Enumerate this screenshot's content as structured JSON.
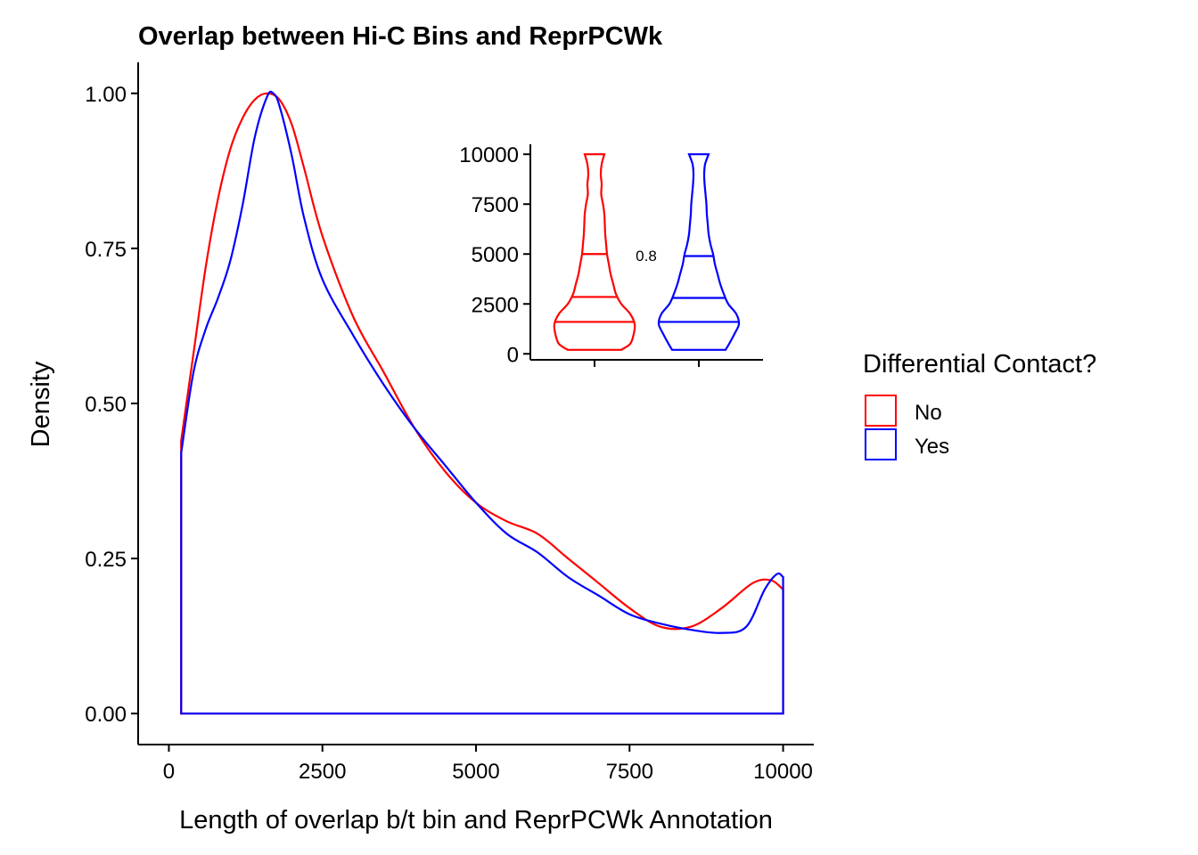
{
  "chart_data": [
    {
      "type": "line",
      "title": "Overlap between Hi-C Bins and ReprPCWk",
      "xlabel": "Length of overlap b/t bin and ReprPCWk Annotation",
      "ylabel": "Density",
      "xlim": [
        -500,
        10500
      ],
      "ylim": [
        -0.05,
        1.05
      ],
      "x_ticks": [
        0,
        2500,
        5000,
        7500,
        10000
      ],
      "x_tick_labels": [
        "0",
        "2500",
        "5000",
        "7500",
        "10000"
      ],
      "y_ticks": [
        0,
        0.25,
        0.5,
        0.75,
        1.0
      ],
      "y_tick_labels": [
        "0.00",
        "0.25",
        "0.50",
        "0.75",
        "1.00"
      ],
      "grid": false,
      "series": [
        {
          "name": "No",
          "color": "#ff0000",
          "x": [
            200,
            400,
            600,
            800,
            1000,
            1200,
            1400,
            1600,
            1800,
            2000,
            2200,
            2500,
            3000,
            3500,
            4000,
            4500,
            5000,
            5500,
            6000,
            6500,
            7000,
            7500,
            8000,
            8500,
            9000,
            9500,
            9800,
            10000
          ],
          "y": [
            0.44,
            0.58,
            0.72,
            0.83,
            0.91,
            0.96,
            0.99,
            1.0,
            0.99,
            0.95,
            0.88,
            0.77,
            0.64,
            0.55,
            0.46,
            0.39,
            0.34,
            0.31,
            0.29,
            0.25,
            0.21,
            0.17,
            0.14,
            0.14,
            0.17,
            0.21,
            0.215,
            0.2
          ]
        },
        {
          "name": "Yes",
          "color": "#0000ff",
          "x": [
            200,
            400,
            600,
            800,
            1000,
            1200,
            1400,
            1600,
            1700,
            1800,
            2000,
            2200,
            2500,
            3000,
            3500,
            4000,
            4500,
            5000,
            5500,
            6000,
            6500,
            7000,
            7500,
            8000,
            8500,
            9000,
            9400,
            9700,
            9900,
            10000
          ],
          "y": [
            0.42,
            0.55,
            0.62,
            0.67,
            0.73,
            0.82,
            0.93,
            0.995,
            1.0,
            0.98,
            0.9,
            0.8,
            0.7,
            0.61,
            0.53,
            0.46,
            0.4,
            0.34,
            0.29,
            0.26,
            0.22,
            0.19,
            0.16,
            0.145,
            0.135,
            0.13,
            0.14,
            0.2,
            0.225,
            0.22
          ]
        }
      ],
      "legend": {
        "title": "Differential Contact?",
        "position": "right",
        "entries": [
          {
            "label": "No",
            "color": "#ff0000"
          },
          {
            "label": "Yes",
            "color": "#0000ff"
          }
        ]
      }
    },
    {
      "type": "violin",
      "ylim": [
        -300,
        10500
      ],
      "y_ticks": [
        0,
        2500,
        5000,
        7500,
        10000
      ],
      "y_tick_labels": [
        "0",
        "2500",
        "5000",
        "7500",
        "10000"
      ],
      "annotation": "0.8",
      "groups": [
        {
          "name": "No",
          "color": "#ff0000",
          "quantiles": [
            1600,
            2850,
            5000
          ],
          "profile": [
            [
              200,
              30
            ],
            [
              500,
              40
            ],
            [
              1000,
              44
            ],
            [
              1500,
              45
            ],
            [
              2000,
              40
            ],
            [
              2500,
              30
            ],
            [
              3000,
              24
            ],
            [
              3500,
              21
            ],
            [
              4000,
              18
            ],
            [
              4500,
              16
            ],
            [
              5000,
              14
            ],
            [
              5500,
              13
            ],
            [
              6000,
              12
            ],
            [
              6500,
              11.5
            ],
            [
              7000,
              11
            ],
            [
              7500,
              9.5
            ],
            [
              8000,
              7.5
            ],
            [
              8500,
              8
            ],
            [
              9000,
              7
            ],
            [
              9500,
              8
            ],
            [
              10000,
              11
            ]
          ]
        },
        {
          "name": "Yes",
          "color": "#0000ff",
          "quantiles": [
            1600,
            2800,
            4900
          ],
          "profile": [
            [
              200,
              30
            ],
            [
              500,
              34
            ],
            [
              1000,
              40
            ],
            [
              1500,
              45
            ],
            [
              2000,
              42
            ],
            [
              2500,
              33
            ],
            [
              3000,
              28
            ],
            [
              3500,
              24
            ],
            [
              4000,
              21
            ],
            [
              4500,
              18
            ],
            [
              5000,
              16
            ],
            [
              5500,
              13
            ],
            [
              6000,
              11
            ],
            [
              6500,
              10
            ],
            [
              7000,
              9
            ],
            [
              7500,
              8.5
            ],
            [
              8000,
              7.5
            ],
            [
              8500,
              6.5
            ],
            [
              9000,
              6
            ],
            [
              9500,
              7
            ],
            [
              10000,
              11
            ]
          ]
        }
      ]
    }
  ]
}
